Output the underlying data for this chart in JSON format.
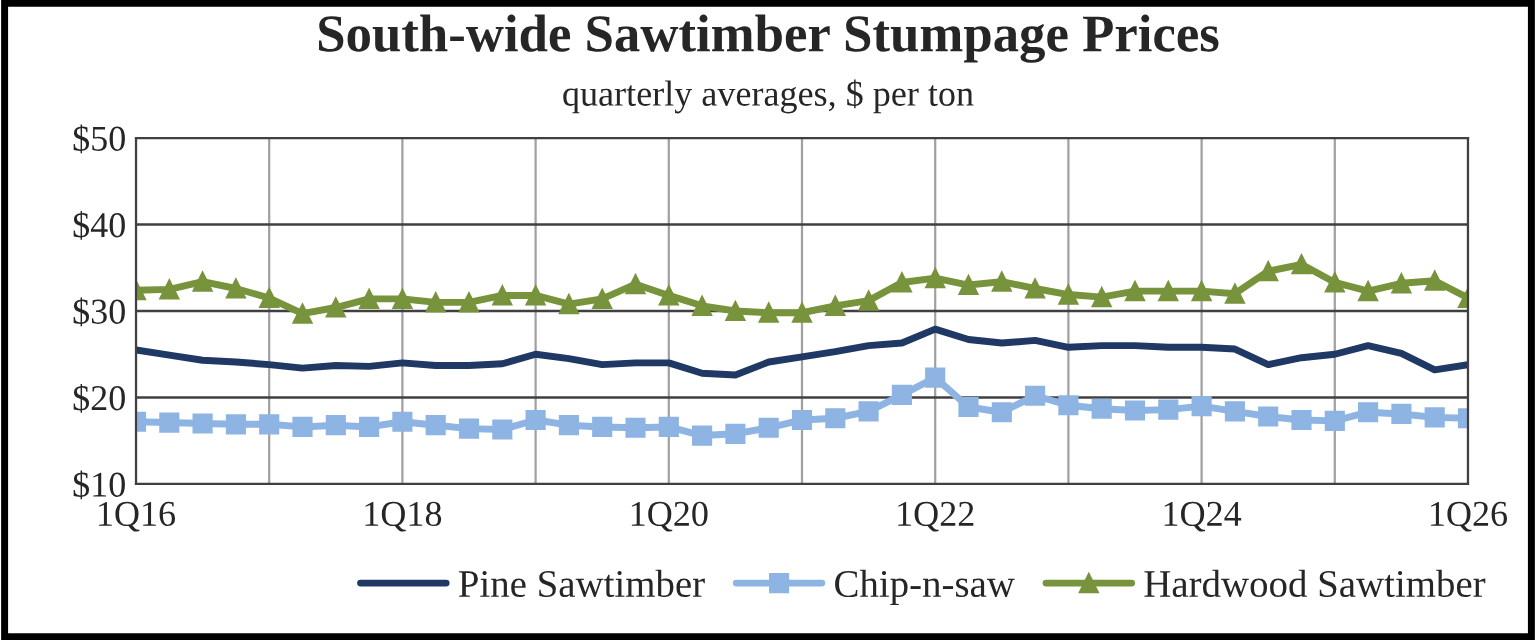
{
  "chart_data": {
    "type": "line",
    "title": "South-wide Sawtimber Stumpage Prices",
    "subtitle": "quarterly averages, $ per ton",
    "categories": [
      "1Q16",
      null,
      null,
      null,
      null,
      null,
      null,
      null,
      "1Q18",
      null,
      null,
      null,
      null,
      null,
      null,
      null,
      "1Q20",
      null,
      null,
      null,
      null,
      null,
      null,
      null,
      "1Q22",
      null,
      null,
      null,
      null,
      null,
      null,
      null,
      "1Q24",
      null,
      null,
      null,
      null,
      null,
      null,
      null,
      "1Q26"
    ],
    "series": [
      {
        "name": "Pine Sawtimber",
        "color": "#1f3864",
        "marker": "none",
        "values": [
          25.5,
          24.9,
          24.3,
          24.1,
          23.8,
          23.4,
          23.7,
          23.6,
          24.0,
          23.7,
          23.7,
          23.9,
          25.0,
          24.5,
          23.8,
          24.0,
          24.0,
          22.8,
          22.6,
          24.1,
          24.7,
          25.3,
          26.0,
          26.3,
          27.9,
          26.7,
          26.3,
          26.6,
          25.8,
          26.0,
          26.0,
          25.8,
          25.8,
          25.6,
          23.8,
          24.6,
          25.0,
          26.0,
          25.1,
          23.2,
          23.8
        ]
      },
      {
        "name": "Chip-n-saw",
        "color": "#8db4e2",
        "marker": "square",
        "values": [
          17.2,
          17.1,
          17.0,
          16.9,
          16.9,
          16.6,
          16.8,
          16.6,
          17.2,
          16.8,
          16.4,
          16.3,
          17.4,
          16.8,
          16.6,
          16.5,
          16.6,
          15.6,
          15.8,
          16.5,
          17.4,
          17.6,
          18.4,
          20.3,
          22.3,
          18.9,
          18.3,
          20.2,
          19.1,
          18.7,
          18.5,
          18.6,
          19.0,
          18.4,
          17.8,
          17.4,
          17.3,
          18.3,
          18.1,
          17.7,
          17.6
        ]
      },
      {
        "name": "Hardwood Sawtimber",
        "color": "#77933c",
        "marker": "triangle",
        "values": [
          32.4,
          32.5,
          33.4,
          32.6,
          31.5,
          29.7,
          30.4,
          31.4,
          31.4,
          31.0,
          31.0,
          31.8,
          31.8,
          30.8,
          31.4,
          33.1,
          31.8,
          30.6,
          30.0,
          29.8,
          29.8,
          30.6,
          31.2,
          33.3,
          33.8,
          33.0,
          33.4,
          32.6,
          31.9,
          31.6,
          32.3,
          32.3,
          32.3,
          32.0,
          34.6,
          35.4,
          33.3,
          32.3,
          33.2,
          33.5,
          31.5
        ]
      }
    ],
    "ylim": [
      10,
      50
    ],
    "yticks": [
      {
        "value": 10,
        "label": "$10"
      },
      {
        "value": 20,
        "label": "$20"
      },
      {
        "value": 30,
        "label": "$30"
      },
      {
        "value": 40,
        "label": "$40"
      },
      {
        "value": 50,
        "label": "$50"
      }
    ],
    "grid": true,
    "legend": "bottom",
    "line_style": "solid"
  }
}
